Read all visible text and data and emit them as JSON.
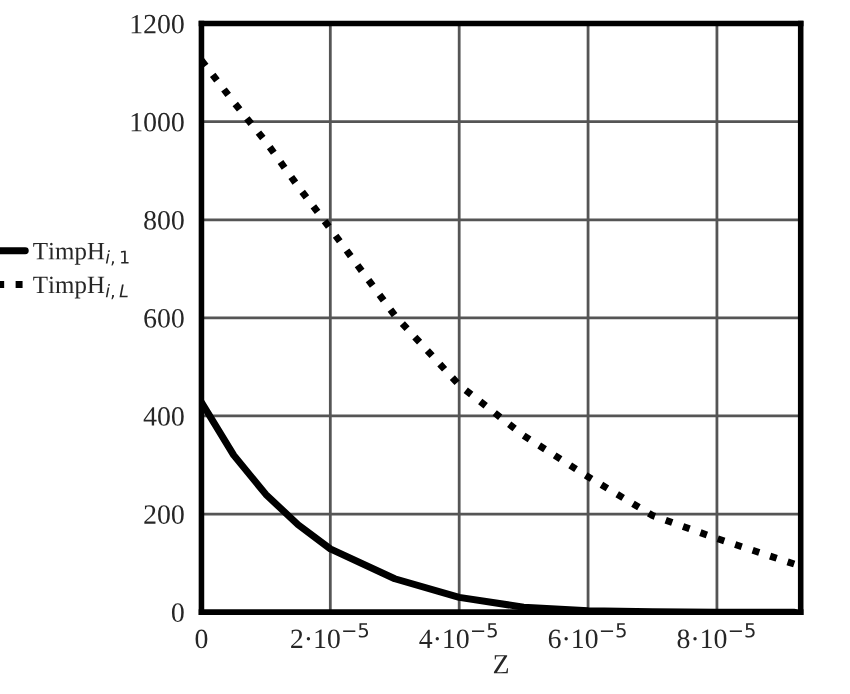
{
  "chart_data": {
    "type": "line",
    "xlabel": "Z",
    "x": [
      0,
      5e-06,
      1e-05,
      1.5e-05,
      2e-05,
      3e-05,
      4e-05,
      5e-05,
      6e-05,
      7e-05,
      8e-05,
      9.2e-05
    ],
    "series": [
      {
        "name": "TimpH$_{i,1}$",
        "color": "#000000",
        "line_style": "solid",
        "values": [
          428,
          320,
          240,
          178,
          129,
          68,
          30,
          10,
          3,
          1,
          0,
          0
        ]
      },
      {
        "name": "TimpH$_{i,L}$",
        "color": "#000000",
        "line_style": "dotted",
        "values": [
          1125,
          1040,
          959,
          868,
          782,
          605,
          463,
          360,
          276,
          197,
          150,
          98
        ]
      }
    ],
    "xlim": [
      0,
      9.3e-05
    ],
    "ylim": [
      0,
      1200
    ],
    "xticks": [
      0,
      {
        "value": 2e-05,
        "label": "2·10$^{−5}$"
      },
      {
        "value": 4e-05,
        "label": "4·10$^{−5}$"
      },
      {
        "value": 6e-05,
        "label": "6·10$^{−5}$"
      },
      {
        "value": 8e-05,
        "label": "8·10$^{−5}$"
      }
    ],
    "yticks": [
      0,
      200,
      400,
      600,
      800,
      1000,
      1200
    ],
    "grid": true,
    "legend": "left"
  }
}
